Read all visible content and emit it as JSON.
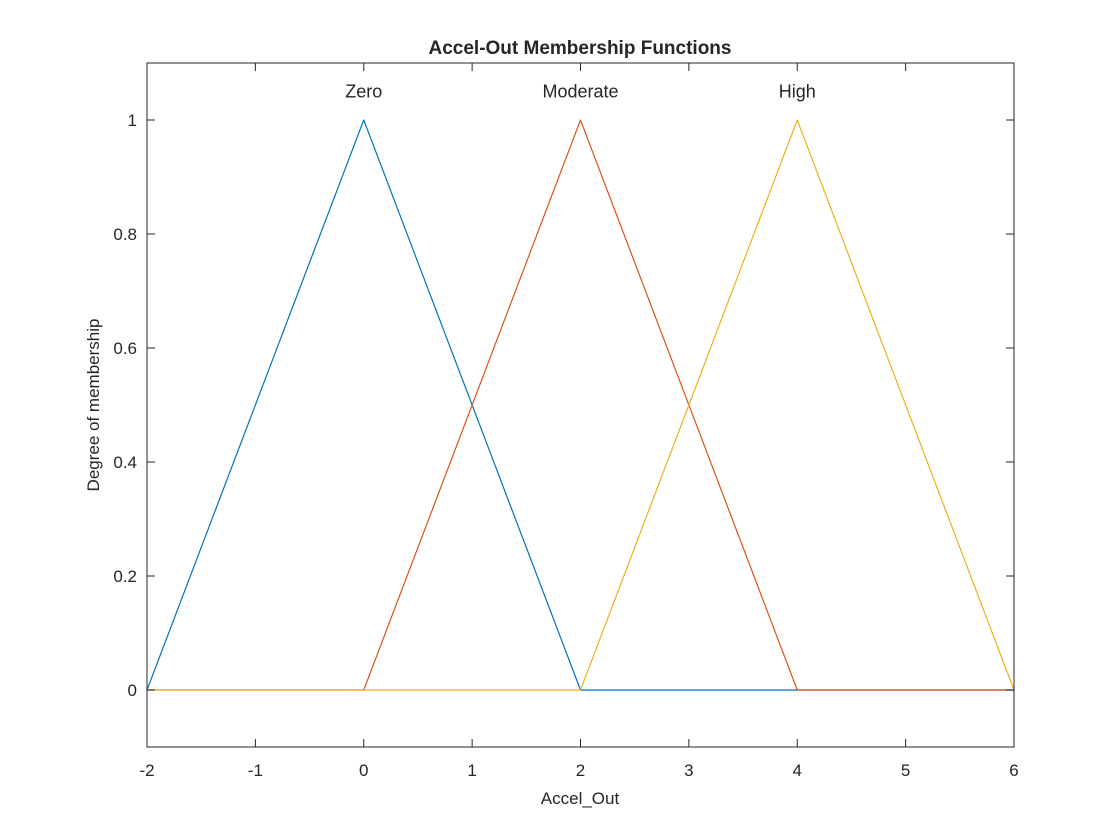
{
  "chart_data": {
    "type": "line",
    "title": "Accel-Out Membership Functions",
    "xlabel": "Accel_Out",
    "ylabel": "Degree of membership",
    "xlim": [
      -2,
      6
    ],
    "ylim": [
      -0.1,
      1.1
    ],
    "xticks": [
      -2,
      -1,
      0,
      1,
      2,
      3,
      4,
      5,
      6
    ],
    "yticks": [
      0,
      0.2,
      0.4,
      0.6,
      0.8,
      1
    ],
    "grid": false,
    "series": [
      {
        "name": "Zero",
        "color": "#0072BD",
        "x": [
          -2,
          0,
          2,
          6
        ],
        "y": [
          0,
          1,
          0,
          0
        ]
      },
      {
        "name": "Moderate",
        "color": "#D95319",
        "x": [
          -2,
          0,
          2,
          4,
          6
        ],
        "y": [
          0,
          0,
          1,
          0,
          0
        ]
      },
      {
        "name": "High",
        "color": "#EDB120",
        "x": [
          -2,
          2,
          4,
          6
        ],
        "y": [
          0,
          0,
          1,
          0
        ]
      }
    ],
    "annotations": [
      {
        "text": "Zero",
        "x": 0,
        "y": 1.05
      },
      {
        "text": "Moderate",
        "x": 2,
        "y": 1.05
      },
      {
        "text": "High",
        "x": 4,
        "y": 1.05
      }
    ]
  }
}
